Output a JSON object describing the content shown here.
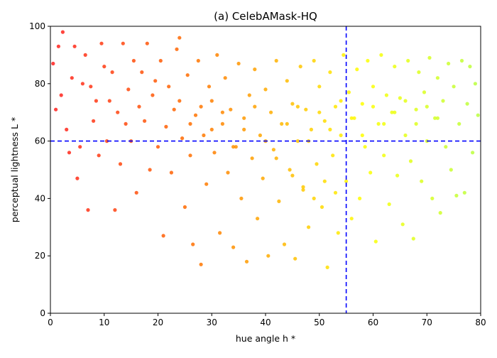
{
  "chart_data": {
    "type": "scatter",
    "title": "(a) CelebAMask-HQ",
    "xlabel": "hue angle h *",
    "ylabel": "perceptual lightness L *",
    "xlim": [
      0,
      80
    ],
    "ylim": [
      0,
      100
    ],
    "xticks": [
      0,
      10,
      20,
      30,
      40,
      50,
      60,
      70,
      80
    ],
    "yticks": [
      0,
      20,
      40,
      60,
      80,
      100
    ],
    "grid": false,
    "reference_lines": [
      {
        "orientation": "vertical",
        "value": 55,
        "style": "dashed",
        "color": "#0000ff"
      },
      {
        "orientation": "horizontal",
        "value": 60,
        "style": "dashed",
        "color": "#0000ff"
      }
    ],
    "point_color_map": {
      "variable": "hue angle h *",
      "stops": [
        {
          "value": 0,
          "color": "#ff1e1e"
        },
        {
          "value": 25,
          "color": "#ff6a00"
        },
        {
          "value": 45,
          "color": "#ffbf00"
        },
        {
          "value": 58,
          "color": "#ffff00"
        },
        {
          "value": 80,
          "color": "#b8ff40"
        }
      ]
    },
    "series": [
      {
        "points": [
          [
            0.5,
            87
          ],
          [
            1.0,
            71
          ],
          [
            1.5,
            93
          ],
          [
            2.0,
            76
          ],
          [
            2.3,
            98
          ],
          [
            3.0,
            64
          ],
          [
            3.5,
            56
          ],
          [
            4.0,
            82
          ],
          [
            4.5,
            93
          ],
          [
            5.0,
            47
          ],
          [
            5.5,
            58
          ],
          [
            6.0,
            80
          ],
          [
            6.5,
            90
          ],
          [
            7.0,
            36
          ],
          [
            7.5,
            79
          ],
          [
            8.0,
            67
          ],
          [
            8.5,
            74
          ],
          [
            9.0,
            55
          ],
          [
            9.5,
            94
          ],
          [
            10.0,
            86
          ],
          [
            10.5,
            60
          ],
          [
            11.0,
            74
          ],
          [
            11.5,
            84
          ],
          [
            12.0,
            36
          ],
          [
            12.5,
            70
          ],
          [
            13.0,
            52
          ],
          [
            13.5,
            94
          ],
          [
            14.0,
            66
          ],
          [
            14.5,
            78
          ],
          [
            15.0,
            60
          ],
          [
            15.5,
            88
          ],
          [
            16.0,
            42
          ],
          [
            16.5,
            72
          ],
          [
            17.0,
            84
          ],
          [
            17.5,
            67
          ],
          [
            18.0,
            94
          ],
          [
            18.5,
            50
          ],
          [
            19.0,
            76
          ],
          [
            19.5,
            81
          ],
          [
            20.0,
            58
          ],
          [
            20.5,
            88
          ],
          [
            21.0,
            27
          ],
          [
            21.5,
            65
          ],
          [
            22.0,
            79
          ],
          [
            22.5,
            49
          ],
          [
            23.0,
            71
          ],
          [
            23.5,
            92
          ],
          [
            24.0,
            96
          ],
          [
            24.5,
            61
          ],
          [
            25.0,
            37
          ],
          [
            25.5,
            83
          ],
          [
            26.0,
            55
          ],
          [
            26.5,
            24
          ],
          [
            27.0,
            69
          ],
          [
            27.5,
            88
          ],
          [
            28.0,
            17
          ],
          [
            28.5,
            62
          ],
          [
            29.0,
            45
          ],
          [
            29.5,
            79
          ],
          [
            30.0,
            74
          ],
          [
            30.5,
            56
          ],
          [
            31.0,
            90
          ],
          [
            31.5,
            28
          ],
          [
            32.0,
            66
          ],
          [
            32.5,
            82
          ],
          [
            33.0,
            49
          ],
          [
            33.5,
            71
          ],
          [
            34.0,
            23
          ],
          [
            34.5,
            58
          ],
          [
            35.0,
            87
          ],
          [
            35.5,
            40
          ],
          [
            36.0,
            68
          ],
          [
            36.5,
            18
          ],
          [
            37.0,
            76
          ],
          [
            37.5,
            54
          ],
          [
            38.0,
            85
          ],
          [
            38.5,
            33
          ],
          [
            39.0,
            62
          ],
          [
            39.5,
            47
          ],
          [
            40.0,
            78
          ],
          [
            40.5,
            20
          ],
          [
            41.0,
            70
          ],
          [
            41.5,
            57
          ],
          [
            42.0,
            88
          ],
          [
            42.5,
            39
          ],
          [
            43.0,
            66
          ],
          [
            43.5,
            24
          ],
          [
            44.0,
            81
          ],
          [
            44.5,
            50
          ],
          [
            45.0,
            73
          ],
          [
            45.5,
            19
          ],
          [
            46.0,
            60
          ],
          [
            46.5,
            86
          ],
          [
            47.0,
            43
          ],
          [
            47.5,
            71
          ],
          [
            48.0,
            30
          ],
          [
            48.5,
            64
          ],
          [
            49.0,
            88
          ],
          [
            49.5,
            52
          ],
          [
            50.0,
            79
          ],
          [
            50.5,
            37
          ],
          [
            51.0,
            67
          ],
          [
            51.5,
            16
          ],
          [
            52.0,
            84
          ],
          [
            52.5,
            55
          ],
          [
            53.0,
            72
          ],
          [
            53.5,
            28
          ],
          [
            54.0,
            62
          ],
          [
            54.5,
            90
          ],
          [
            55.0,
            46
          ],
          [
            55.5,
            77
          ],
          [
            56.0,
            33
          ],
          [
            56.5,
            68
          ],
          [
            57.0,
            85
          ],
          [
            57.5,
            40
          ],
          [
            58.0,
            73
          ],
          [
            58.5,
            58
          ],
          [
            59.0,
            88
          ],
          [
            59.5,
            49
          ],
          [
            60.0,
            79
          ],
          [
            60.5,
            25
          ],
          [
            61.0,
            66
          ],
          [
            61.5,
            90
          ],
          [
            62.0,
            55
          ],
          [
            62.5,
            76
          ],
          [
            63.0,
            38
          ],
          [
            63.5,
            70
          ],
          [
            64.0,
            86
          ],
          [
            64.5,
            48
          ],
          [
            65.0,
            75
          ],
          [
            65.5,
            31
          ],
          [
            66.0,
            62
          ],
          [
            66.5,
            88
          ],
          [
            67.0,
            53
          ],
          [
            67.5,
            26
          ],
          [
            68.0,
            71
          ],
          [
            68.5,
            84
          ],
          [
            69.0,
            46
          ],
          [
            69.5,
            77
          ],
          [
            70.0,
            60
          ],
          [
            70.5,
            89
          ],
          [
            71.0,
            40
          ],
          [
            71.5,
            68
          ],
          [
            72.0,
            82
          ],
          [
            72.5,
            35
          ],
          [
            73.0,
            74
          ],
          [
            73.5,
            58
          ],
          [
            74.0,
            87
          ],
          [
            74.5,
            50
          ],
          [
            75.0,
            79
          ],
          [
            75.5,
            41
          ],
          [
            76.0,
            66
          ],
          [
            76.5,
            88
          ],
          [
            77.0,
            42
          ],
          [
            77.5,
            73
          ],
          [
            78.0,
            86
          ],
          [
            78.5,
            56
          ],
          [
            79.0,
            80
          ],
          [
            79.5,
            69
          ],
          [
            44.0,
            66
          ],
          [
            46.0,
            72
          ],
          [
            48.0,
            60
          ],
          [
            50.0,
            70
          ],
          [
            52.0,
            64
          ],
          [
            54.0,
            74
          ],
          [
            56.0,
            68
          ],
          [
            58.0,
            62
          ],
          [
            60.0,
            72
          ],
          [
            62.0,
            66
          ],
          [
            40.0,
            60
          ],
          [
            42.0,
            54
          ],
          [
            36.0,
            64
          ],
          [
            38.0,
            72
          ],
          [
            34.0,
            58
          ],
          [
            32.0,
            70
          ],
          [
            30.0,
            64
          ],
          [
            28.0,
            72
          ],
          [
            26.0,
            66
          ],
          [
            24.0,
            74
          ],
          [
            64.0,
            70
          ],
          [
            66.0,
            74
          ],
          [
            68.0,
            66
          ],
          [
            70.0,
            72
          ],
          [
            72.0,
            68
          ],
          [
            45.0,
            48
          ],
          [
            47.0,
            44
          ],
          [
            49.0,
            40
          ],
          [
            51.0,
            46
          ],
          [
            53.0,
            42
          ]
        ]
      }
    ]
  }
}
